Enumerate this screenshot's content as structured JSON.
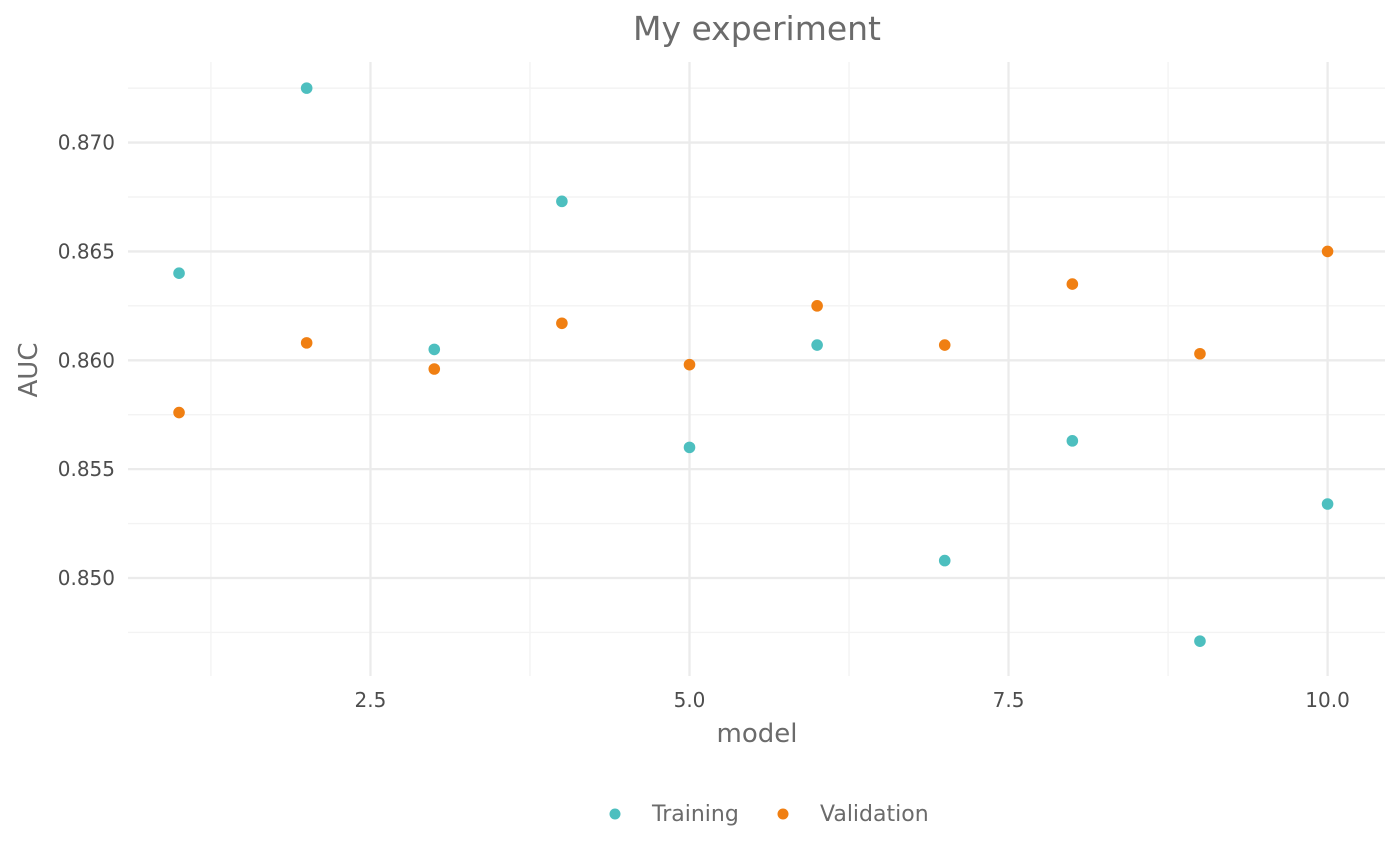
{
  "chart_data": {
    "type": "scatter",
    "title": "My experiment",
    "xlabel": "model",
    "ylabel": "AUC",
    "xlim": [
      0.6,
      10.45
    ],
    "ylim": [
      0.8455,
      0.8737
    ],
    "x_ticks": [
      2.5,
      5.0,
      7.5,
      10.0
    ],
    "x_tick_labels": [
      "2.5",
      "5.0",
      "7.5",
      "10.0"
    ],
    "x_minor_ticks": [
      1.25,
      3.75,
      6.25,
      8.75
    ],
    "y_ticks": [
      0.85,
      0.855,
      0.86,
      0.865,
      0.87
    ],
    "y_tick_labels": [
      "0.850",
      "0.855",
      "0.860",
      "0.865",
      "0.870"
    ],
    "y_minor_ticks": [
      0.8475,
      0.8525,
      0.8575,
      0.8625,
      0.8675,
      0.8725
    ],
    "grid": true,
    "legend_position": "bottom",
    "series": [
      {
        "name": "Training",
        "color": "#4dbfbf",
        "x": [
          1,
          2,
          3,
          4,
          5,
          6,
          7,
          8,
          9,
          10
        ],
        "y": [
          0.864,
          0.8725,
          0.8605,
          0.8673,
          0.856,
          0.8607,
          0.8508,
          0.8563,
          0.8471,
          0.8534
        ]
      },
      {
        "name": "Validation",
        "color": "#f07f12",
        "x": [
          1,
          2,
          3,
          4,
          5,
          6,
          7,
          8,
          9,
          10
        ],
        "y": [
          0.8576,
          0.8608,
          0.8596,
          0.8617,
          0.8598,
          0.8625,
          0.8607,
          0.8635,
          0.8603,
          0.865
        ]
      }
    ]
  }
}
